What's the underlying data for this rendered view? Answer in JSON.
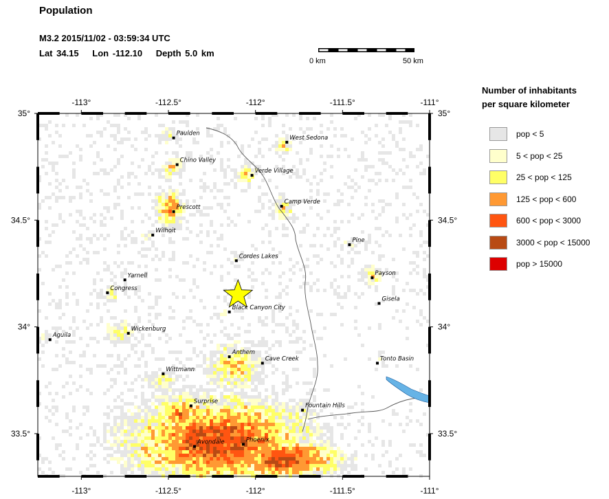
{
  "header": {
    "title": "Population",
    "event_line": "M3.2  2015/11/02 - 03:59:34 UTC",
    "lat": "Lat 34.15",
    "lon": "Lon -112.10",
    "depth": "Depth  5.0 km"
  },
  "scale": {
    "start_label": "0 km",
    "end_label": "50 km"
  },
  "map": {
    "lon_range": [
      -113.25,
      -111.0
    ],
    "lat_range": [
      33.3,
      35.0
    ],
    "lon_ticks": [
      {
        "value": -113.0,
        "label": "-113°"
      },
      {
        "value": -112.5,
        "label": "-112.5°"
      },
      {
        "value": -112.0,
        "label": "-112°"
      },
      {
        "value": -111.5,
        "label": "-111.5°"
      },
      {
        "value": -111.0,
        "label": "-111°"
      }
    ],
    "lat_ticks": [
      {
        "value": 35.0,
        "label": "35°"
      },
      {
        "value": 34.5,
        "label": "34.5°"
      },
      {
        "value": 34.0,
        "label": "34°"
      },
      {
        "value": 33.5,
        "label": "33.5°"
      }
    ],
    "epicenter": {
      "lon": -112.1,
      "lat": 34.15,
      "color": "#ffff00"
    },
    "river_color": "#66b3e6",
    "cities": [
      {
        "name": "Paulden",
        "lon": -112.47,
        "lat": 34.885
      },
      {
        "name": "West Sedona",
        "lon": -111.82,
        "lat": 34.865
      },
      {
        "name": "Chino Valley",
        "lon": -112.45,
        "lat": 34.76
      },
      {
        "name": "Verde Village",
        "lon": -112.02,
        "lat": 34.71
      },
      {
        "name": "Camp Verde",
        "lon": -111.85,
        "lat": 34.565
      },
      {
        "name": "Prescott",
        "lon": -112.47,
        "lat": 34.54
      },
      {
        "name": "Wilhoit",
        "lon": -112.59,
        "lat": 34.43
      },
      {
        "name": "Pine",
        "lon": -111.46,
        "lat": 34.385
      },
      {
        "name": "Cordes Lakes",
        "lon": -112.11,
        "lat": 34.31
      },
      {
        "name": "Payson",
        "lon": -111.33,
        "lat": 34.23
      },
      {
        "name": "Yarnell",
        "lon": -112.75,
        "lat": 34.22
      },
      {
        "name": "Congress",
        "lon": -112.85,
        "lat": 34.16
      },
      {
        "name": "Gisela",
        "lon": -111.29,
        "lat": 34.11
      },
      {
        "name": "Black Canyon City",
        "lon": -112.15,
        "lat": 34.07
      },
      {
        "name": "Wickenburg",
        "lon": -112.73,
        "lat": 33.97
      },
      {
        "name": "Aguila",
        "lon": -113.18,
        "lat": 33.94
      },
      {
        "name": "Anthem",
        "lon": -112.15,
        "lat": 33.86
      },
      {
        "name": "Cave Creek",
        "lon": -111.96,
        "lat": 33.83
      },
      {
        "name": "Tonto Basin",
        "lon": -111.3,
        "lat": 33.83
      },
      {
        "name": "Wittmann",
        "lon": -112.53,
        "lat": 33.78
      },
      {
        "name": "Surprise",
        "lon": -112.37,
        "lat": 33.63
      },
      {
        "name": "Fountain Hills",
        "lon": -111.73,
        "lat": 33.61
      },
      {
        "name": "Avondale",
        "lon": -112.35,
        "lat": 33.44
      },
      {
        "name": "Phoenix",
        "lon": -112.07,
        "lat": 33.45
      }
    ]
  },
  "legend": {
    "title_line1": "Number of inhabitants",
    "title_line2": "per square kilometer",
    "items": [
      {
        "label": "pop < 5",
        "color": "#e6e6e6"
      },
      {
        "label": "5 < pop < 25",
        "color": "#ffffcc"
      },
      {
        "label": "25 < pop < 125",
        "color": "#ffff66"
      },
      {
        "label": "125 < pop < 600",
        "color": "#ff9933"
      },
      {
        "label": "600 < pop < 3000",
        "color": "#ff5511"
      },
      {
        "label": "3000 < pop < 15000",
        "color": "#b84a14"
      },
      {
        "label": "pop > 15000",
        "color": "#dd0000"
      }
    ]
  }
}
